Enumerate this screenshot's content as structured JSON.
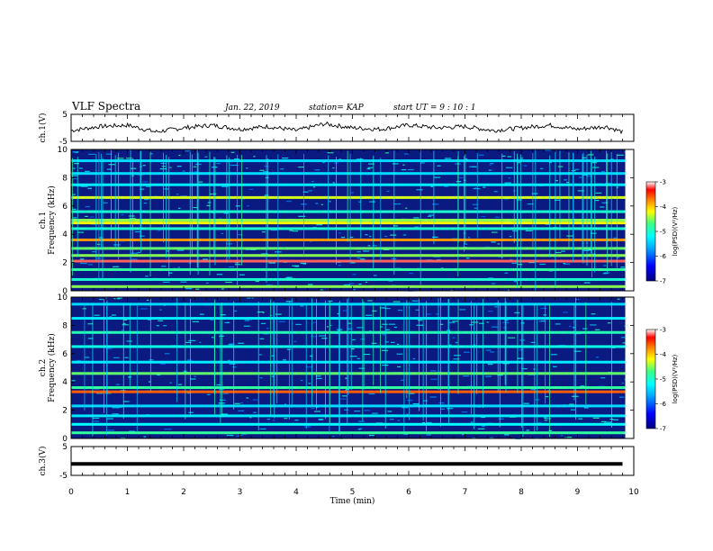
{
  "header": {
    "title": "VLF Spectra",
    "date": "Jan. 22, 2019",
    "station": "station= KAP",
    "start": "start  UT =   9 : 10 : 1"
  },
  "colors": {
    "spectrogram_background": "#0a1a80",
    "colormap": [
      "#000080",
      "#0000ff",
      "#00a0ff",
      "#00ffff",
      "#40ff80",
      "#ffff00",
      "#ff8000",
      "#ff0000",
      "#ffffff"
    ]
  },
  "chart_data": [
    {
      "type": "line",
      "name": "ch1-voltage",
      "ylabel": "ch.1(V)",
      "ylim": [
        -5,
        5
      ],
      "yticks": [
        "5",
        "-5"
      ],
      "x": [
        0,
        0.5,
        1,
        1.5,
        2,
        2.5,
        3,
        3.5,
        4,
        4.5,
        5,
        5.5,
        6,
        6.5,
        7,
        7.5,
        8,
        8.5,
        9,
        9.5,
        9.8
      ],
      "values": [
        -1,
        0.5,
        1,
        -1.5,
        0,
        1,
        -0.5,
        0.5,
        -1,
        1.5,
        0,
        -0.5,
        1,
        0,
        0.5,
        -1,
        0,
        1,
        -0.5,
        0.5,
        -1.5
      ]
    },
    {
      "type": "heatmap",
      "name": "ch1-spectrogram",
      "ylabel": "ch.1\nFrequency  (kHz)",
      "ylim": [
        0,
        10
      ],
      "yticks": [
        "0",
        "2",
        "4",
        "6",
        "8",
        "10"
      ],
      "colorbar": {
        "label": "log(PSD)(V²/Hz)",
        "range": [
          -7,
          -3
        ],
        "ticks": [
          "-3",
          "-4",
          "-5",
          "-6",
          "-7"
        ]
      },
      "bands_khz": [
        {
          "f": 0.3,
          "level": -4.5
        },
        {
          "f": 0.8,
          "level": -5
        },
        {
          "f": 1.5,
          "level": -4.8
        },
        {
          "f": 2.1,
          "level": -3.2
        },
        {
          "f": 2.5,
          "level": -4.5
        },
        {
          "f": 3.0,
          "level": -4.6
        },
        {
          "f": 3.6,
          "level": -3.8
        },
        {
          "f": 4.4,
          "level": -5
        },
        {
          "f": 4.8,
          "level": -4.2
        },
        {
          "f": 5.0,
          "level": -4.5
        },
        {
          "f": 5.6,
          "level": -5
        },
        {
          "f": 6.6,
          "level": -4.3
        },
        {
          "f": 7.5,
          "level": -5.3
        },
        {
          "f": 8.3,
          "level": -5.4
        },
        {
          "f": 9.2,
          "level": -5.4
        }
      ]
    },
    {
      "type": "heatmap",
      "name": "ch2-spectrogram",
      "ylabel": "ch.2\nFrequency  (kHz)",
      "ylim": [
        0,
        10
      ],
      "yticks": [
        "0",
        "2",
        "4",
        "6",
        "8",
        "10"
      ],
      "colorbar": {
        "label": "log(PSD)(V²/Hz)",
        "range": [
          -7,
          -3
        ],
        "ticks": [
          "-3",
          "-4",
          "-5",
          "-6",
          "-7"
        ]
      },
      "bands_khz": [
        {
          "f": 0.4,
          "level": -4.8
        },
        {
          "f": 1.0,
          "level": -5.2
        },
        {
          "f": 1.6,
          "level": -5.3
        },
        {
          "f": 2.3,
          "level": -5.4
        },
        {
          "f": 3.3,
          "level": -3.6
        },
        {
          "f": 3.6,
          "level": -4.8
        },
        {
          "f": 4.6,
          "level": -4.6
        },
        {
          "f": 5.4,
          "level": -5.3
        },
        {
          "f": 6.5,
          "level": -5.1
        },
        {
          "f": 7.5,
          "level": -4.9
        },
        {
          "f": 8.5,
          "level": -5.3
        },
        {
          "f": 9.5,
          "level": -5.4
        }
      ]
    },
    {
      "type": "line",
      "name": "ch3-voltage",
      "ylabel": "ch.3(V)",
      "ylim": [
        -5,
        5
      ],
      "yticks": [
        "5",
        "-5"
      ],
      "x": [
        0,
        9.8
      ],
      "values": [
        -1,
        -1
      ]
    }
  ],
  "xaxis": {
    "xlabel": "Time  (min)",
    "xlim": [
      0,
      10
    ],
    "xticks": [
      "0",
      "1",
      "2",
      "3",
      "4",
      "5",
      "6",
      "7",
      "8",
      "9",
      "10"
    ]
  }
}
